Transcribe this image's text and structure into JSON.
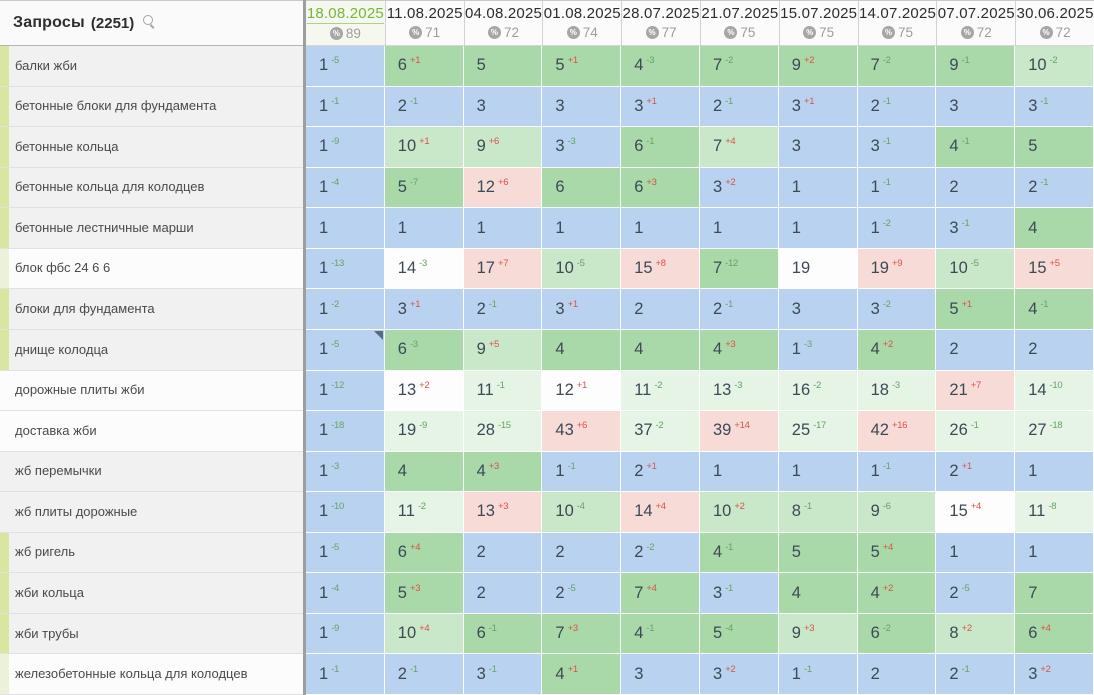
{
  "table": {
    "queries_header": {
      "label": "Запросы",
      "count": "(2251)",
      "search_icon": "search-icon"
    },
    "columns": [
      {
        "date": "18.08.2025",
        "percent": "89",
        "selected": true
      },
      {
        "date": "11.08.2025",
        "percent": "71",
        "selected": false
      },
      {
        "date": "04.08.2025",
        "percent": "72",
        "selected": false
      },
      {
        "date": "01.08.2025",
        "percent": "74",
        "selected": false
      },
      {
        "date": "28.07.2025",
        "percent": "77",
        "selected": false
      },
      {
        "date": "21.07.2025",
        "percent": "75",
        "selected": false
      },
      {
        "date": "15.07.2025",
        "percent": "75",
        "selected": false
      },
      {
        "date": "14.07.2025",
        "percent": "75",
        "selected": false
      },
      {
        "date": "07.07.2025",
        "percent": "72",
        "selected": false
      },
      {
        "date": "30.06.2025",
        "percent": "72",
        "selected": false
      }
    ],
    "rows": [
      {
        "keyword": "балки жби",
        "row_bg": "gray",
        "stripe": "green",
        "marker_col": null,
        "cells": [
          {
            "v": 1,
            "d": -5,
            "bg": "B"
          },
          {
            "v": 6,
            "d": 1,
            "bg": "G"
          },
          {
            "v": 5,
            "d": null,
            "bg": "G"
          },
          {
            "v": 5,
            "d": 1,
            "bg": "G"
          },
          {
            "v": 4,
            "d": -3,
            "bg": "G"
          },
          {
            "v": 7,
            "d": -2,
            "bg": "G"
          },
          {
            "v": 9,
            "d": 2,
            "bg": "G"
          },
          {
            "v": 7,
            "d": -2,
            "bg": "G"
          },
          {
            "v": 9,
            "d": -1,
            "bg": "G"
          },
          {
            "v": 10,
            "d": -2,
            "bg": "L"
          }
        ]
      },
      {
        "keyword": "бетонные блоки для фундамента",
        "row_bg": "gray",
        "stripe": "green",
        "marker_col": null,
        "cells": [
          {
            "v": 1,
            "d": -1,
            "bg": "B"
          },
          {
            "v": 2,
            "d": -1,
            "bg": "B"
          },
          {
            "v": 3,
            "d": null,
            "bg": "B"
          },
          {
            "v": 3,
            "d": null,
            "bg": "B"
          },
          {
            "v": 3,
            "d": 1,
            "bg": "B"
          },
          {
            "v": 2,
            "d": -1,
            "bg": "B"
          },
          {
            "v": 3,
            "d": 1,
            "bg": "B"
          },
          {
            "v": 2,
            "d": -1,
            "bg": "B"
          },
          {
            "v": 3,
            "d": null,
            "bg": "B"
          },
          {
            "v": 3,
            "d": -1,
            "bg": "B"
          }
        ]
      },
      {
        "keyword": "бетонные кольца",
        "row_bg": "gray",
        "stripe": "green",
        "marker_col": null,
        "cells": [
          {
            "v": 1,
            "d": -9,
            "bg": "B"
          },
          {
            "v": 10,
            "d": 1,
            "bg": "L"
          },
          {
            "v": 9,
            "d": 6,
            "bg": "L"
          },
          {
            "v": 3,
            "d": -3,
            "bg": "B"
          },
          {
            "v": 6,
            "d": -1,
            "bg": "G"
          },
          {
            "v": 7,
            "d": 4,
            "bg": "L"
          },
          {
            "v": 3,
            "d": null,
            "bg": "B"
          },
          {
            "v": 3,
            "d": -1,
            "bg": "B"
          },
          {
            "v": 4,
            "d": -1,
            "bg": "G"
          },
          {
            "v": 5,
            "d": null,
            "bg": "G"
          }
        ]
      },
      {
        "keyword": "бетонные кольца для колодцев",
        "row_bg": "gray",
        "stripe": "green",
        "marker_col": null,
        "cells": [
          {
            "v": 1,
            "d": -4,
            "bg": "B"
          },
          {
            "v": 5,
            "d": -7,
            "bg": "G"
          },
          {
            "v": 12,
            "d": 6,
            "bg": "P"
          },
          {
            "v": 6,
            "d": null,
            "bg": "G"
          },
          {
            "v": 6,
            "d": 3,
            "bg": "G"
          },
          {
            "v": 3,
            "d": 2,
            "bg": "B"
          },
          {
            "v": 1,
            "d": null,
            "bg": "B"
          },
          {
            "v": 1,
            "d": -1,
            "bg": "B"
          },
          {
            "v": 2,
            "d": null,
            "bg": "B"
          },
          {
            "v": 2,
            "d": -1,
            "bg": "B"
          }
        ]
      },
      {
        "keyword": "бетонные лестничные марши",
        "row_bg": "gray",
        "stripe": "green",
        "marker_col": null,
        "cells": [
          {
            "v": 1,
            "d": null,
            "bg": "B"
          },
          {
            "v": 1,
            "d": null,
            "bg": "B"
          },
          {
            "v": 1,
            "d": null,
            "bg": "B"
          },
          {
            "v": 1,
            "d": null,
            "bg": "B"
          },
          {
            "v": 1,
            "d": null,
            "bg": "B"
          },
          {
            "v": 1,
            "d": null,
            "bg": "B"
          },
          {
            "v": 1,
            "d": null,
            "bg": "B"
          },
          {
            "v": 1,
            "d": -2,
            "bg": "B"
          },
          {
            "v": 3,
            "d": -1,
            "bg": "B"
          },
          {
            "v": 4,
            "d": null,
            "bg": "G"
          }
        ]
      },
      {
        "keyword": "блок фбс 24 6 6",
        "row_bg": "white",
        "stripe": "pale",
        "marker_col": null,
        "cells": [
          {
            "v": 1,
            "d": -13,
            "bg": "B"
          },
          {
            "v": 14,
            "d": -3,
            "bg": "W"
          },
          {
            "v": 17,
            "d": 7,
            "bg": "P"
          },
          {
            "v": 10,
            "d": -5,
            "bg": "L"
          },
          {
            "v": 15,
            "d": 8,
            "bg": "P"
          },
          {
            "v": 7,
            "d": -12,
            "bg": "G"
          },
          {
            "v": 19,
            "d": null,
            "bg": "W"
          },
          {
            "v": 19,
            "d": 9,
            "bg": "P"
          },
          {
            "v": 10,
            "d": -5,
            "bg": "L"
          },
          {
            "v": 15,
            "d": 5,
            "bg": "P"
          }
        ]
      },
      {
        "keyword": "блоки для фундамента",
        "row_bg": "gray",
        "stripe": "green",
        "marker_col": null,
        "cells": [
          {
            "v": 1,
            "d": -2,
            "bg": "B"
          },
          {
            "v": 3,
            "d": 1,
            "bg": "B"
          },
          {
            "v": 2,
            "d": -1,
            "bg": "B"
          },
          {
            "v": 3,
            "d": 1,
            "bg": "B"
          },
          {
            "v": 2,
            "d": null,
            "bg": "B"
          },
          {
            "v": 2,
            "d": -1,
            "bg": "B"
          },
          {
            "v": 3,
            "d": null,
            "bg": "B"
          },
          {
            "v": 3,
            "d": -2,
            "bg": "B"
          },
          {
            "v": 5,
            "d": 1,
            "bg": "G"
          },
          {
            "v": 4,
            "d": -1,
            "bg": "G"
          }
        ]
      },
      {
        "keyword": "днище колодца",
        "row_bg": "gray",
        "stripe": "green",
        "marker_col": 0,
        "cells": [
          {
            "v": 1,
            "d": -5,
            "bg": "B"
          },
          {
            "v": 6,
            "d": -3,
            "bg": "G"
          },
          {
            "v": 9,
            "d": 5,
            "bg": "L"
          },
          {
            "v": 4,
            "d": null,
            "bg": "G"
          },
          {
            "v": 4,
            "d": null,
            "bg": "G"
          },
          {
            "v": 4,
            "d": 3,
            "bg": "G"
          },
          {
            "v": 1,
            "d": -3,
            "bg": "B"
          },
          {
            "v": 4,
            "d": 2,
            "bg": "G"
          },
          {
            "v": 2,
            "d": null,
            "bg": "B"
          },
          {
            "v": 2,
            "d": null,
            "bg": "B"
          }
        ]
      },
      {
        "keyword": "дорожные плиты жби",
        "row_bg": "white",
        "stripe": "none",
        "marker_col": null,
        "cells": [
          {
            "v": 1,
            "d": -12,
            "bg": "B"
          },
          {
            "v": 13,
            "d": 2,
            "bg": "W"
          },
          {
            "v": 11,
            "d": -1,
            "bg": "V"
          },
          {
            "v": 12,
            "d": 1,
            "bg": "W"
          },
          {
            "v": 11,
            "d": -2,
            "bg": "V"
          },
          {
            "v": 13,
            "d": -3,
            "bg": "V"
          },
          {
            "v": 16,
            "d": -2,
            "bg": "V"
          },
          {
            "v": 18,
            "d": -3,
            "bg": "V"
          },
          {
            "v": 21,
            "d": 7,
            "bg": "P"
          },
          {
            "v": 14,
            "d": -10,
            "bg": "V"
          }
        ]
      },
      {
        "keyword": "доставка жби",
        "row_bg": "white",
        "stripe": "none",
        "marker_col": null,
        "cells": [
          {
            "v": 1,
            "d": -18,
            "bg": "B"
          },
          {
            "v": 19,
            "d": -9,
            "bg": "V"
          },
          {
            "v": 28,
            "d": -15,
            "bg": "V"
          },
          {
            "v": 43,
            "d": 6,
            "bg": "P"
          },
          {
            "v": 37,
            "d": -2,
            "bg": "V"
          },
          {
            "v": 39,
            "d": 14,
            "bg": "P"
          },
          {
            "v": 25,
            "d": -17,
            "bg": "V"
          },
          {
            "v": 42,
            "d": 16,
            "bg": "P"
          },
          {
            "v": 26,
            "d": -1,
            "bg": "V"
          },
          {
            "v": 27,
            "d": -18,
            "bg": "V"
          }
        ]
      },
      {
        "keyword": "жб перемычки",
        "row_bg": "gray",
        "stripe": "none",
        "marker_col": null,
        "cells": [
          {
            "v": 1,
            "d": -3,
            "bg": "B"
          },
          {
            "v": 4,
            "d": null,
            "bg": "G"
          },
          {
            "v": 4,
            "d": 3,
            "bg": "G"
          },
          {
            "v": 1,
            "d": -1,
            "bg": "B"
          },
          {
            "v": 2,
            "d": 1,
            "bg": "B"
          },
          {
            "v": 1,
            "d": null,
            "bg": "B"
          },
          {
            "v": 1,
            "d": null,
            "bg": "B"
          },
          {
            "v": 1,
            "d": -1,
            "bg": "B"
          },
          {
            "v": 2,
            "d": 1,
            "bg": "B"
          },
          {
            "v": 1,
            "d": null,
            "bg": "B"
          }
        ]
      },
      {
        "keyword": "жб плиты дорожные",
        "row_bg": "gray",
        "stripe": "none",
        "marker_col": null,
        "cells": [
          {
            "v": 1,
            "d": -10,
            "bg": "B"
          },
          {
            "v": 11,
            "d": -2,
            "bg": "V"
          },
          {
            "v": 13,
            "d": 3,
            "bg": "P"
          },
          {
            "v": 10,
            "d": -4,
            "bg": "L"
          },
          {
            "v": 14,
            "d": 4,
            "bg": "P"
          },
          {
            "v": 10,
            "d": 2,
            "bg": "L"
          },
          {
            "v": 8,
            "d": -1,
            "bg": "L"
          },
          {
            "v": 9,
            "d": -6,
            "bg": "L"
          },
          {
            "v": 15,
            "d": 4,
            "bg": "W"
          },
          {
            "v": 11,
            "d": -8,
            "bg": "V"
          }
        ]
      },
      {
        "keyword": "жб ригель",
        "row_bg": "gray",
        "stripe": "green",
        "marker_col": null,
        "cells": [
          {
            "v": 1,
            "d": -5,
            "bg": "B"
          },
          {
            "v": 6,
            "d": 4,
            "bg": "G"
          },
          {
            "v": 2,
            "d": null,
            "bg": "B"
          },
          {
            "v": 2,
            "d": null,
            "bg": "B"
          },
          {
            "v": 2,
            "d": -2,
            "bg": "B"
          },
          {
            "v": 4,
            "d": -1,
            "bg": "G"
          },
          {
            "v": 5,
            "d": null,
            "bg": "G"
          },
          {
            "v": 5,
            "d": 4,
            "bg": "G"
          },
          {
            "v": 1,
            "d": null,
            "bg": "B"
          },
          {
            "v": 1,
            "d": null,
            "bg": "B"
          }
        ]
      },
      {
        "keyword": "жби кольца",
        "row_bg": "gray",
        "stripe": "green",
        "marker_col": null,
        "cells": [
          {
            "v": 1,
            "d": -4,
            "bg": "B"
          },
          {
            "v": 5,
            "d": 3,
            "bg": "G"
          },
          {
            "v": 2,
            "d": null,
            "bg": "B"
          },
          {
            "v": 2,
            "d": -5,
            "bg": "B"
          },
          {
            "v": 7,
            "d": 4,
            "bg": "G"
          },
          {
            "v": 3,
            "d": -1,
            "bg": "B"
          },
          {
            "v": 4,
            "d": null,
            "bg": "G"
          },
          {
            "v": 4,
            "d": 2,
            "bg": "G"
          },
          {
            "v": 2,
            "d": -5,
            "bg": "B"
          },
          {
            "v": 7,
            "d": null,
            "bg": "G"
          }
        ]
      },
      {
        "keyword": "жби трубы",
        "row_bg": "gray",
        "stripe": "green",
        "marker_col": null,
        "cells": [
          {
            "v": 1,
            "d": -9,
            "bg": "B"
          },
          {
            "v": 10,
            "d": 4,
            "bg": "L"
          },
          {
            "v": 6,
            "d": -1,
            "bg": "G"
          },
          {
            "v": 7,
            "d": 3,
            "bg": "G"
          },
          {
            "v": 4,
            "d": -1,
            "bg": "G"
          },
          {
            "v": 5,
            "d": -4,
            "bg": "G"
          },
          {
            "v": 9,
            "d": 3,
            "bg": "L"
          },
          {
            "v": 6,
            "d": -2,
            "bg": "G"
          },
          {
            "v": 8,
            "d": 2,
            "bg": "L"
          },
          {
            "v": 6,
            "d": 4,
            "bg": "G"
          }
        ]
      },
      {
        "keyword": "железобетонные кольца для колодцев",
        "row_bg": "white",
        "stripe": "pale",
        "marker_col": null,
        "cells": [
          {
            "v": 1,
            "d": -1,
            "bg": "B"
          },
          {
            "v": 2,
            "d": -1,
            "bg": "B"
          },
          {
            "v": 3,
            "d": -1,
            "bg": "B"
          },
          {
            "v": 4,
            "d": 1,
            "bg": "G"
          },
          {
            "v": 3,
            "d": null,
            "bg": "B"
          },
          {
            "v": 3,
            "d": 2,
            "bg": "B"
          },
          {
            "v": 1,
            "d": -1,
            "bg": "B"
          },
          {
            "v": 2,
            "d": null,
            "bg": "B"
          },
          {
            "v": 2,
            "d": -1,
            "bg": "B"
          },
          {
            "v": 3,
            "d": 2,
            "bg": "B"
          }
        ]
      }
    ]
  },
  "colors": {
    "B": "#b9d2f0",
    "G": "#a9d8a9",
    "L": "#c9e7c9",
    "V": "#e5f4e5",
    "W": "#fdfdfd",
    "P": "#f6dbd7",
    "delta_up_green": "#68a166",
    "delta_down_red": "#d8544a",
    "selected_date_green": "#77b63c"
  }
}
